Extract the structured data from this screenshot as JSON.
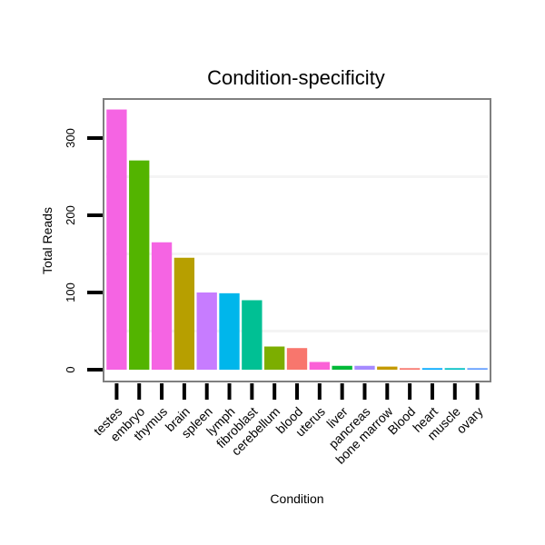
{
  "chart_data": {
    "type": "bar",
    "title": "Condition-specificity",
    "xlabel": "Condition",
    "ylabel": "Total Reads",
    "ylim": [
      0,
      345
    ],
    "yticks": [
      0,
      100,
      200,
      300
    ],
    "categories": [
      "testes",
      "embryo",
      "thymus",
      "brain",
      "spleen",
      "lymph",
      "fibroblast",
      "cerebellum",
      "blood",
      "uterus",
      "liver",
      "pancreas",
      "bone marrow",
      "Blood",
      "heart",
      "muscle",
      "ovary"
    ],
    "values": [
      337,
      271,
      165,
      145,
      100,
      99,
      90,
      30,
      28,
      10,
      5,
      5,
      4,
      2,
      2,
      2,
      2
    ],
    "colors": [
      "#F564E3",
      "#53B400",
      "#F564E3",
      "#B79F00",
      "#C77CFF",
      "#00B6EB",
      "#00C094",
      "#7CAE00",
      "#F8766D",
      "#FB61D7",
      "#00BA38",
      "#A58AFF",
      "#C49A00",
      "#F8766D",
      "#00A9FF",
      "#00BFC4",
      "#619CFF"
    ],
    "grid": true,
    "legend": "none"
  }
}
